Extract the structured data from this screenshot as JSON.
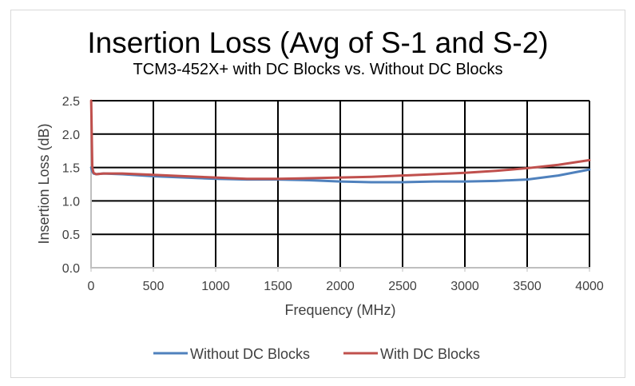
{
  "chart_data": {
    "type": "line",
    "title": "Insertion Loss (Avg of S-1 and S-2)",
    "subtitle": "TCM3-452X+ with DC Blocks vs. Without DC Blocks",
    "xlabel": "Frequency (MHz)",
    "ylabel": "Insertion Loss (dB)",
    "xlim": [
      0,
      4000
    ],
    "ylim": [
      0,
      2.5
    ],
    "x_ticks": [
      0,
      500,
      1000,
      1500,
      2000,
      2500,
      3000,
      3500,
      4000
    ],
    "x_tick_labels": [
      "0",
      "500",
      "1000",
      "1500",
      "2000",
      "2500",
      "3000",
      "3500",
      "4000"
    ],
    "y_ticks": [
      0,
      0.5,
      1.0,
      1.5,
      2.0,
      2.5
    ],
    "y_tick_labels": [
      "0.0",
      "0.5",
      "1.0",
      "1.5",
      "2.0",
      "2.5"
    ],
    "grid": true,
    "legend_position": "bottom",
    "series": [
      {
        "name": "Without DC Blocks",
        "color": "#4f81bd",
        "x": [
          1,
          10,
          20,
          40,
          100,
          250,
          500,
          750,
          1000,
          1250,
          1500,
          1750,
          2000,
          2250,
          2500,
          2750,
          3000,
          3250,
          3500,
          3750,
          4000
        ],
        "y": [
          1.5,
          1.44,
          1.41,
          1.4,
          1.41,
          1.4,
          1.37,
          1.35,
          1.33,
          1.32,
          1.32,
          1.31,
          1.29,
          1.28,
          1.28,
          1.29,
          1.29,
          1.3,
          1.32,
          1.38,
          1.47
        ]
      },
      {
        "name": "With DC Blocks",
        "color": "#c0504d",
        "x": [
          1,
          10,
          20,
          40,
          100,
          250,
          500,
          750,
          1000,
          1250,
          1500,
          1750,
          2000,
          2250,
          2500,
          2750,
          3000,
          3250,
          3500,
          3750,
          4000
        ],
        "y": [
          2.5,
          1.5,
          1.42,
          1.4,
          1.41,
          1.41,
          1.39,
          1.37,
          1.35,
          1.33,
          1.33,
          1.34,
          1.35,
          1.36,
          1.38,
          1.4,
          1.42,
          1.45,
          1.49,
          1.54,
          1.61
        ]
      }
    ]
  }
}
